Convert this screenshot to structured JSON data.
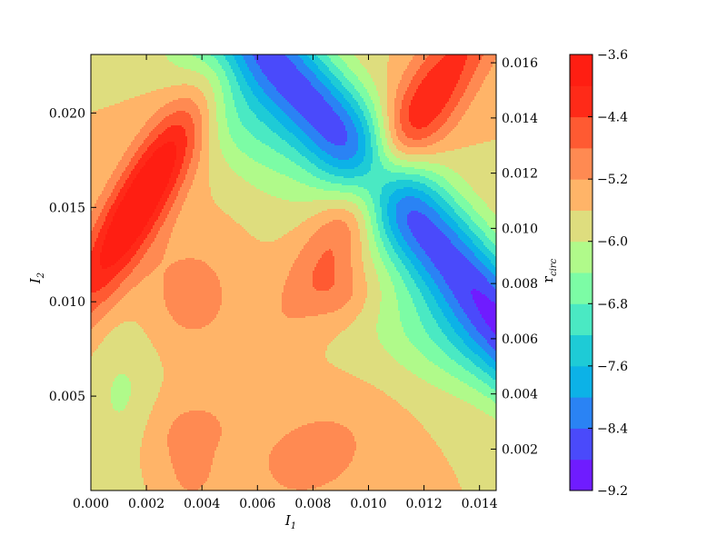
{
  "chart_data": {
    "type": "contourf",
    "title": "",
    "xlabel": "I",
    "xlabel_sub": "1",
    "ylabel": "I",
    "ylabel_sub": "2",
    "right_axis_label": "r",
    "right_axis_label_sub": "circ",
    "xlim": [
      0.0,
      0.0146
    ],
    "ylim": [
      0.0,
      0.0231
    ],
    "right_ylim": [
      0.0005,
      0.0163
    ],
    "x_ticks": [
      0.0,
      0.002,
      0.004,
      0.006,
      0.008,
      0.01,
      0.012,
      0.014
    ],
    "x_tick_labels": [
      "0.000",
      "0.002",
      "0.004",
      "0.006",
      "0.008",
      "0.010",
      "0.012",
      "0.014"
    ],
    "y_ticks": [
      0.005,
      0.01,
      0.015,
      0.02
    ],
    "y_tick_labels": [
      "0.005",
      "0.010",
      "0.015",
      "0.020"
    ],
    "right_ticks": [
      0.002,
      0.004,
      0.006,
      0.008,
      0.01,
      0.012,
      0.014,
      0.016
    ],
    "right_tick_labels": [
      "0.002",
      "0.004",
      "0.006",
      "0.008",
      "0.010",
      "0.012",
      "0.014",
      "0.016"
    ],
    "colorbar": {
      "range": [
        -9.2,
        -3.6
      ],
      "levels": [
        -9.2,
        -8.8,
        -8.4,
        -8.0,
        -7.6,
        -7.2,
        -6.8,
        -6.4,
        -6.0,
        -5.6,
        -5.2,
        -4.8,
        -4.4,
        -4.0,
        -3.6
      ],
      "tick_values": [
        -9.2,
        -8.4,
        -7.6,
        -6.8,
        -6.0,
        -5.2,
        -4.4,
        -3.6
      ],
      "tick_labels": [
        "−9.2",
        "−8.4",
        "−7.6",
        "−6.8",
        "−6.0",
        "−5.2",
        "−4.4",
        "−3.6"
      ],
      "colors": [
        "#6f1cff",
        "#4a4afb",
        "#2a83f4",
        "#0cb2e7",
        "#1ecbd6",
        "#4ae9c3",
        "#7cfca5",
        "#b0fa8a",
        "#dedd7e",
        "#ffb468",
        "#ff8a52",
        "#ff5a32",
        "#ff2a18",
        "#ff1e12"
      ]
    },
    "approx_features": {
      "min_valley": "diagonal low band from upper-left to lower-right, minimum about -9.2 near (0.0055, 0.018) and (0.013, 0.008)",
      "max_ridges": "high near (0.0015, 0.015) about -3.7 and upper-right band near (0.0105, 0.018) about -4.0",
      "grid": false
    }
  }
}
